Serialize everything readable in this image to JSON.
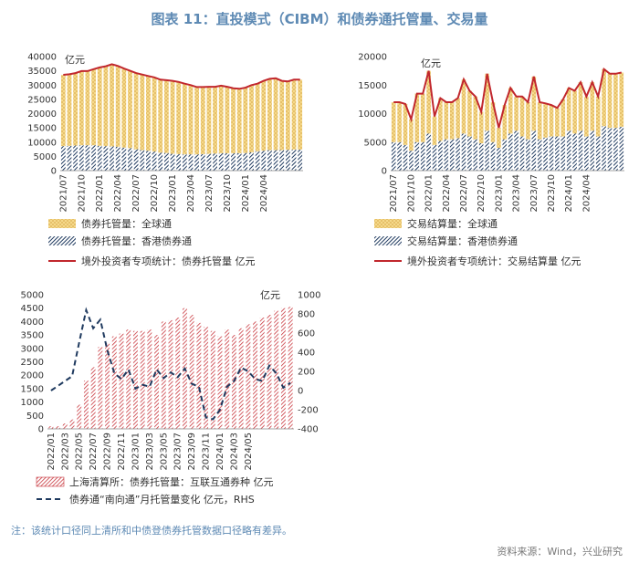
{
  "title": "图表 11：直投模式（CIBM）和债券通托管量、交易量",
  "note": "注：该统计口径同上清所和中债登债券托管数据口径略有差异。",
  "source": "资料来源：Wind，兴业研究",
  "colors": {
    "yellow": "#f5d98a",
    "yellow_line": "#d7a84a",
    "navy": "#1f3a5f",
    "red": "#c1272d",
    "red_hatch": "#c8353c",
    "dash": "#1f3a5f"
  },
  "chart_data": [
    {
      "id": "c1",
      "type": "bar",
      "unit": "亿元",
      "ylim": [
        0,
        40000
      ],
      "yticks": [
        "0",
        "5000",
        "10000",
        "15000",
        "20000",
        "25000",
        "30000",
        "35000",
        "40000"
      ],
      "xticks": [
        "2021/07",
        "2021/10",
        "2022/01",
        "2022/04",
        "2022/07",
        "2022/10",
        "2023/01",
        "2023/04",
        "2023/07",
        "2023/10",
        "2024/01",
        "2024/04"
      ],
      "legend": [
        "债券托管量：全球通",
        "债券托管量：香港债券通",
        "境外投资者专项统计：债券托管量 亿元"
      ],
      "series": [
        {
          "name": "债券托管量：全球通",
          "values": [
            25000,
            25100,
            25400,
            26000,
            26000,
            26700,
            27500,
            28000,
            28800,
            28300,
            27700,
            27100,
            26700,
            26500,
            26200,
            26000,
            25600,
            25500,
            25600,
            25300,
            24800,
            24300,
            23600,
            23500,
            23500,
            23400,
            23700,
            23300,
            22800,
            22600,
            22900,
            23600,
            23700,
            24500,
            25000,
            25200,
            24300,
            24000,
            24500,
            24500
          ]
        },
        {
          "name": "债券托管量：香港债券通",
          "values": [
            8600,
            8700,
            8800,
            8900,
            8900,
            8900,
            8700,
            8600,
            8500,
            8400,
            8100,
            7900,
            7500,
            7200,
            7000,
            6700,
            6300,
            6200,
            5900,
            5800,
            5700,
            5700,
            5700,
            5800,
            5900,
            6000,
            6100,
            6100,
            6100,
            6100,
            6200,
            6400,
            6800,
            7000,
            7200,
            7200,
            7200,
            7300,
            7400,
            7400
          ]
        },
        {
          "name": "境外投资者专项统计：债券托管量 亿元",
          "values": [
            33600,
            33800,
            34200,
            34900,
            34900,
            35600,
            36200,
            36600,
            37300,
            36700,
            35800,
            35000,
            34200,
            33700,
            33200,
            32700,
            31900,
            31700,
            31500,
            31100,
            30500,
            30000,
            29300,
            29300,
            29400,
            29400,
            29800,
            29400,
            28900,
            28700,
            29100,
            30000,
            30500,
            31500,
            32200,
            32400,
            31500,
            31300,
            31900,
            31900
          ]
        }
      ]
    },
    {
      "id": "c2",
      "type": "bar",
      "unit": "亿元",
      "ylim": [
        0,
        20000
      ],
      "yticks": [
        "0",
        "5000",
        "10000",
        "15000",
        "20000"
      ],
      "xticks": [
        "2021/07",
        "2021/10",
        "2022/01",
        "2022/04",
        "2022/07",
        "2022/10",
        "2023/01",
        "2023/04",
        "2023/07",
        "2023/10",
        "2024/01",
        "2024/04"
      ],
      "legend": [
        "交易结算量：全球通",
        "交易结算量：香港债券通",
        "境外投资者专项统计：交易结算量 亿元"
      ],
      "series": [
        {
          "name": "交易结算量：全球通",
          "values": [
            7000,
            7000,
            7200,
            5500,
            8500,
            8500,
            11000,
            5000,
            7500,
            6500,
            6500,
            7000,
            9500,
            8000,
            7500,
            5500,
            10000,
            7000,
            3500,
            6000,
            8000,
            6000,
            7000,
            6500,
            9500,
            6500,
            6000,
            5500,
            5000,
            6500,
            7500,
            7500,
            8500,
            7000,
            8500,
            7000,
            10000,
            9500,
            9500,
            9500
          ]
        },
        {
          "name": "交易结算量：香港债券通",
          "values": [
            5000,
            5000,
            4500,
            3500,
            5000,
            5000,
            6500,
            4500,
            5200,
            5500,
            5500,
            5700,
            6500,
            6000,
            5500,
            4800,
            7000,
            5000,
            4000,
            5500,
            6500,
            7000,
            6000,
            5500,
            7000,
            5500,
            5800,
            6000,
            6000,
            6000,
            7000,
            6500,
            7000,
            6000,
            7000,
            6000,
            7800,
            7500,
            7500,
            7700
          ]
        },
        {
          "name": "境外投资者专项统计：交易结算量 亿元",
          "values": [
            12000,
            12000,
            11700,
            9000,
            13500,
            13500,
            17500,
            9500,
            12700,
            12000,
            12000,
            12700,
            16000,
            14000,
            13000,
            10300,
            17000,
            12000,
            7500,
            11500,
            14500,
            13000,
            13000,
            12000,
            16500,
            12000,
            11800,
            11500,
            11000,
            12500,
            14500,
            14000,
            15500,
            13000,
            15500,
            13000,
            17800,
            17000,
            17000,
            17200
          ]
        }
      ]
    },
    {
      "id": "c3",
      "type": "bar",
      "unit": "亿元",
      "ylim": [
        0,
        5000
      ],
      "yticks": [
        "0",
        "500",
        "1000",
        "1500",
        "2000",
        "2500",
        "3000",
        "3500",
        "4000",
        "4500",
        "5000"
      ],
      "y2lim": [
        -400,
        1000
      ],
      "y2ticks": [
        "-400",
        "-200",
        "0",
        "200",
        "400",
        "600",
        "800",
        "1000"
      ],
      "xticks": [
        "2022/01",
        "2022/03",
        "2022/05",
        "2022/07",
        "2022/09",
        "2022/11",
        "2023/01",
        "2023/03",
        "2023/05",
        "2023/07",
        "2023/09",
        "2023/11",
        "2024/01",
        "2024/03",
        "2024/05"
      ],
      "legend": [
        "上海清算所：债券托管量：互联互通券种 亿元",
        "债券通“南向通”月托管量变化 亿元，RHS"
      ],
      "series": [
        {
          "name": "上海清算所：债券托管量：互联互通券种 亿元",
          "values": [
            100,
            100,
            200,
            350,
            900,
            1800,
            2300,
            3050,
            3200,
            3450,
            3550,
            3700,
            3650,
            3650,
            3700,
            3500,
            4000,
            4050,
            4150,
            4500,
            4250,
            3950,
            3800,
            3650,
            3450,
            3700,
            3500,
            3750,
            3900,
            4000,
            4150,
            4250,
            4400,
            4500,
            4550
          ]
        },
        {
          "name": "债券通“南向通”月托管量变化 亿元，RHS",
          "values": [
            0,
            50,
            100,
            150,
            500,
            840,
            650,
            740,
            420,
            180,
            120,
            220,
            20,
            60,
            40,
            220,
            130,
            190,
            140,
            230,
            70,
            40,
            -280,
            -300,
            -200,
            40,
            100,
            240,
            200,
            120,
            100,
            260,
            180,
            30,
            80
          ]
        }
      ]
    }
  ]
}
